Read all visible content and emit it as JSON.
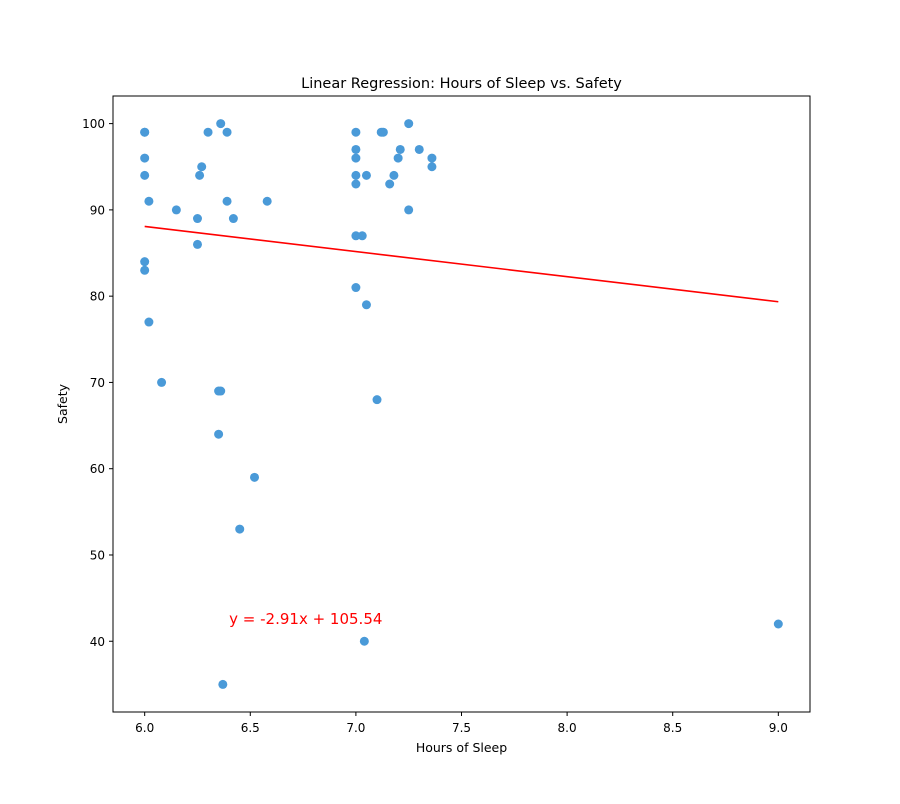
{
  "chart_data": {
    "type": "scatter",
    "title": "Linear Regression: Hours of Sleep vs. Safety",
    "xlabel": "Hours of Sleep",
    "ylabel": "Safety",
    "xlim": [
      5.85,
      9.15
    ],
    "ylim": [
      31.8,
      103.2
    ],
    "xticks": [
      "6.0",
      "6.5",
      "7.0",
      "7.5",
      "8.0",
      "8.5",
      "9.0"
    ],
    "yticks": [
      "40",
      "50",
      "60",
      "70",
      "80",
      "90",
      "100"
    ],
    "grid": false,
    "legend": "none",
    "colors": {
      "points": "#4a9ad8",
      "regression_line": "#ff0000",
      "equation": "#ff0000"
    },
    "equation": {
      "text": "y = -2.91x + 105.54",
      "x": 6.4,
      "y": 42
    },
    "regression": {
      "slope": -2.91,
      "intercept": 105.54,
      "x_start": 6.0,
      "x_end": 9.0
    },
    "points": [
      [
        6.0,
        99
      ],
      [
        6.0,
        99
      ],
      [
        6.0,
        96
      ],
      [
        6.0,
        94
      ],
      [
        6.02,
        91
      ],
      [
        6.0,
        84
      ],
      [
        6.0,
        83
      ],
      [
        6.02,
        77
      ],
      [
        6.08,
        70
      ],
      [
        6.15,
        90
      ],
      [
        6.25,
        89
      ],
      [
        6.25,
        86
      ],
      [
        6.26,
        94
      ],
      [
        6.27,
        95
      ],
      [
        6.3,
        99
      ],
      [
        6.36,
        100
      ],
      [
        6.39,
        99
      ],
      [
        6.39,
        91
      ],
      [
        6.42,
        89
      ],
      [
        6.58,
        91
      ],
      [
        6.35,
        69
      ],
      [
        6.36,
        69
      ],
      [
        6.35,
        64
      ],
      [
        6.52,
        59
      ],
      [
        6.45,
        53
      ],
      [
        6.37,
        35
      ],
      [
        7.0,
        99
      ],
      [
        7.0,
        97
      ],
      [
        7.0,
        96
      ],
      [
        7.0,
        94
      ],
      [
        7.0,
        93
      ],
      [
        7.05,
        94
      ],
      [
        7.0,
        87
      ],
      [
        7.03,
        87
      ],
      [
        7.0,
        81
      ],
      [
        7.05,
        79
      ],
      [
        7.1,
        68
      ],
      [
        7.04,
        40
      ],
      [
        7.12,
        99
      ],
      [
        7.13,
        99
      ],
      [
        7.25,
        100
      ],
      [
        7.21,
        97
      ],
      [
        7.3,
        97
      ],
      [
        7.2,
        96
      ],
      [
        7.36,
        96
      ],
      [
        7.36,
        95
      ],
      [
        7.18,
        94
      ],
      [
        7.16,
        93
      ],
      [
        7.25,
        90
      ],
      [
        9.0,
        42
      ]
    ]
  }
}
